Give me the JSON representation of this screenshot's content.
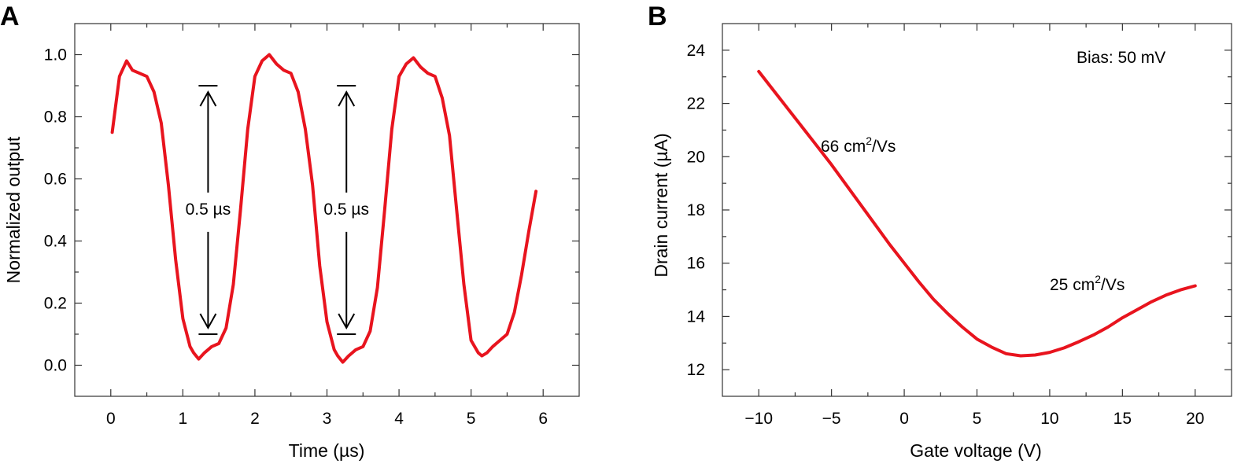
{
  "colors": {
    "curve": "#e8141e",
    "axis": "#333333",
    "text": "#000000"
  },
  "chart_data": [
    {
      "panel": "A",
      "type": "line",
      "xlabel": "Time (µs)",
      "ylabel": "Normalized output",
      "xlim": [
        -0.5,
        6.5
      ],
      "ylim": [
        -0.1,
        1.1
      ],
      "xticks": [
        0,
        1,
        2,
        3,
        4,
        5,
        6
      ],
      "xtick_labels": [
        "0",
        "1",
        "2",
        "3",
        "4",
        "5",
        "6"
      ],
      "yticks": [
        0.0,
        0.2,
        0.4,
        0.6,
        0.8,
        1.0
      ],
      "ytick_labels": [
        "0.0",
        "0.2",
        "0.4",
        "0.6",
        "0.8",
        "1.0"
      ],
      "grid": false,
      "series": [
        {
          "x": [
            0.02,
            0.12,
            0.22,
            0.3,
            0.4,
            0.5,
            0.6,
            0.7,
            0.8,
            0.9,
            1.0,
            1.1,
            1.15,
            1.22,
            1.3,
            1.4,
            1.5,
            1.6,
            1.7,
            1.8,
            1.9,
            2.0,
            2.1,
            2.2,
            2.3,
            2.4,
            2.5,
            2.6,
            2.7,
            2.8,
            2.9,
            3.0,
            3.1,
            3.15,
            3.22,
            3.3,
            3.4,
            3.5,
            3.6,
            3.7,
            3.8,
            3.9,
            4.0,
            4.1,
            4.2,
            4.3,
            4.4,
            4.5,
            4.6,
            4.7,
            4.8,
            4.9,
            5.0,
            5.1,
            5.15,
            5.22,
            5.3,
            5.4,
            5.5,
            5.6,
            5.7,
            5.8,
            5.9
          ],
          "y": [
            0.75,
            0.93,
            0.98,
            0.95,
            0.94,
            0.93,
            0.88,
            0.78,
            0.58,
            0.34,
            0.15,
            0.06,
            0.04,
            0.02,
            0.04,
            0.06,
            0.07,
            0.12,
            0.26,
            0.5,
            0.76,
            0.93,
            0.98,
            1.0,
            0.97,
            0.95,
            0.94,
            0.88,
            0.76,
            0.58,
            0.32,
            0.14,
            0.05,
            0.03,
            0.01,
            0.03,
            0.05,
            0.06,
            0.11,
            0.25,
            0.5,
            0.76,
            0.93,
            0.97,
            0.99,
            0.96,
            0.94,
            0.93,
            0.86,
            0.74,
            0.5,
            0.26,
            0.08,
            0.04,
            0.03,
            0.04,
            0.06,
            0.08,
            0.1,
            0.17,
            0.29,
            0.43,
            0.56
          ]
        }
      ],
      "annotations": [
        {
          "text": "0.5 µs",
          "x": 1.35,
          "y_top": 0.9,
          "y_bottom": 0.1,
          "label_y": 0.48
        },
        {
          "text": "0.5 µs",
          "x": 3.27,
          "y_top": 0.9,
          "y_bottom": 0.1,
          "label_y": 0.48
        }
      ]
    },
    {
      "panel": "B",
      "type": "line",
      "xlabel": "Gate voltage (V)",
      "ylabel": "Drain current (µA)",
      "xlim": [
        -12.5,
        22.5
      ],
      "ylim": [
        11,
        25
      ],
      "xticks": [
        -10,
        -5,
        0,
        5,
        10,
        15,
        20
      ],
      "xtick_labels": [
        "−10",
        "−5",
        "0",
        "5",
        "10",
        "15",
        "20"
      ],
      "yticks": [
        12,
        14,
        16,
        18,
        20,
        22,
        24
      ],
      "ytick_labels": [
        "12",
        "14",
        "16",
        "18",
        "20",
        "22",
        "24"
      ],
      "grid": false,
      "legend_text": "Bias: 50 mV",
      "series": [
        {
          "x": [
            -10,
            -9,
            -8,
            -7,
            -6,
            -5,
            -4,
            -3,
            -2,
            -1,
            0,
            1,
            2,
            3,
            4,
            5,
            6,
            7,
            8,
            9,
            10,
            11,
            12,
            13,
            14,
            15,
            16,
            17,
            18,
            19,
            20
          ],
          "y": [
            23.2,
            22.5,
            21.8,
            21.1,
            20.4,
            19.7,
            18.95,
            18.2,
            17.45,
            16.7,
            16.0,
            15.3,
            14.65,
            14.1,
            13.6,
            13.15,
            12.85,
            12.6,
            12.52,
            12.55,
            12.65,
            12.82,
            13.05,
            13.3,
            13.6,
            13.95,
            14.25,
            14.55,
            14.8,
            15.0,
            15.15
          ]
        }
      ],
      "annotations": [
        {
          "text": "66 cm",
          "sup": "2",
          "tail": "/Vs"
        },
        {
          "text": "25 cm",
          "sup": "2",
          "tail": "/Vs"
        }
      ]
    }
  ]
}
